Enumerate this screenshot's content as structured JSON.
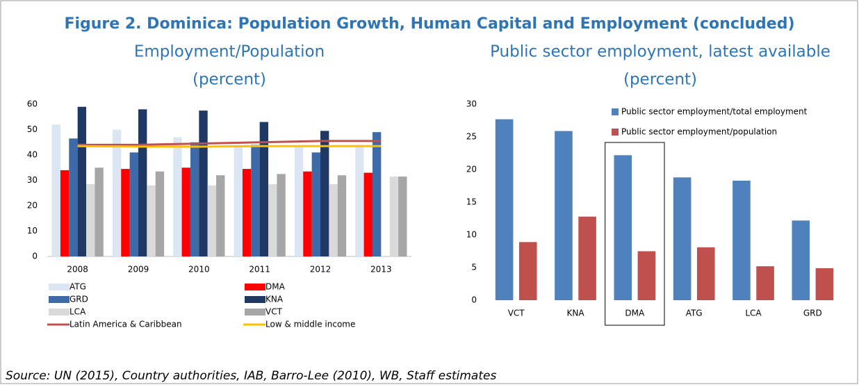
{
  "title": "Figure 2. Dominica: Population Growth, Human Capital and Employment (concluded)",
  "source": "Source: UN (2015), Country authorities, IAB, Barro-Lee (2010), WB, Staff estimates",
  "chart_data": [
    {
      "type": "bar",
      "title": "Employment/Population",
      "subtitle": "(percent)",
      "categories": [
        "2008",
        "2009",
        "2010",
        "2011",
        "2012",
        "2013"
      ],
      "ylim": [
        0,
        60
      ],
      "yticks": [
        0,
        10,
        20,
        30,
        40,
        50,
        60
      ],
      "series": [
        {
          "name": "ATG",
          "color": "#dce6f2",
          "values": [
            52,
            50,
            47,
            43,
            43,
            44
          ]
        },
        {
          "name": "DMA",
          "color": "#ff0000",
          "values": [
            34,
            34.5,
            35,
            34.5,
            33.5,
            33
          ]
        },
        {
          "name": "GRD",
          "color": "#3e6aa8",
          "values": [
            46.5,
            41,
            45,
            44,
            41,
            49
          ]
        },
        {
          "name": "KNA",
          "color": "#1f3864",
          "values": [
            59,
            58,
            57.5,
            53,
            49.5,
            null
          ]
        },
        {
          "name": "LCA",
          "color": "#d9d9d9",
          "values": [
            28.5,
            28,
            28,
            28.5,
            28.5,
            31.5
          ]
        },
        {
          "name": "VCT",
          "color": "#a6a6a6",
          "values": [
            35,
            33.5,
            32,
            32.5,
            32,
            31.5
          ]
        },
        {
          "name": "Latin America & Caribbean",
          "color": "#c0504d",
          "type": "line",
          "values": [
            44,
            44,
            44.5,
            45,
            45.5,
            45.5
          ]
        },
        {
          "name": "Low & middle income",
          "color": "#ffc000",
          "type": "line",
          "values": [
            43.5,
            43.3,
            43.3,
            43.5,
            43.5,
            43.5
          ]
        }
      ]
    },
    {
      "type": "bar",
      "title": "Public sector employment, latest available",
      "subtitle": "(percent)",
      "categories": [
        "VCT",
        "KNA",
        "DMA",
        "ATG",
        "LCA",
        "GRD"
      ],
      "ylim": [
        0,
        30
      ],
      "yticks": [
        0,
        5,
        10,
        15,
        20,
        25,
        30
      ],
      "highlight_index": 2,
      "series": [
        {
          "name": "Public sector employment/total employment",
          "color": "#4f81bd",
          "values": [
            27.7,
            25.9,
            22.2,
            18.8,
            18.3,
            12.2
          ]
        },
        {
          "name": "Public sector employment/population",
          "color": "#c0504d",
          "values": [
            8.9,
            12.8,
            7.5,
            8.1,
            5.2,
            4.9
          ]
        }
      ]
    }
  ]
}
